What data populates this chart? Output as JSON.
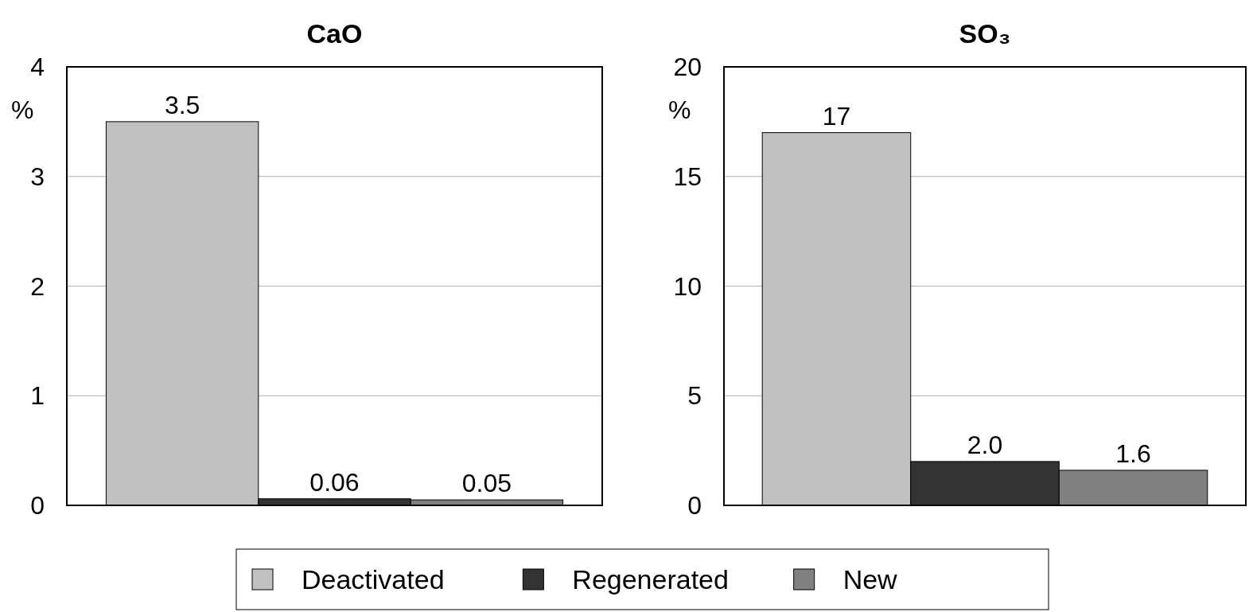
{
  "chart_data": [
    {
      "type": "bar",
      "title": "CaO",
      "ylabel": "%",
      "categories": [
        null
      ],
      "ylim": [
        0,
        4
      ],
      "yticks": [
        0,
        1,
        2,
        3,
        4
      ],
      "grid": "y",
      "legend": "bottom",
      "series": [
        {
          "name": "Deactivated",
          "color": "#c0c0c0",
          "values": [
            3.5
          ],
          "value_labels": [
            "3.5"
          ]
        },
        {
          "name": "Regenerated",
          "color": "#333333",
          "values": [
            0.06
          ],
          "value_labels": [
            "0.06"
          ]
        },
        {
          "name": "New",
          "color": "#808080",
          "values": [
            0.05
          ],
          "value_labels": [
            "0.05"
          ]
        }
      ]
    },
    {
      "type": "bar",
      "title": "SO₃",
      "ylabel": "%",
      "categories": [
        null
      ],
      "ylim": [
        0,
        20
      ],
      "yticks": [
        0,
        5,
        10,
        15,
        20
      ],
      "grid": "y",
      "series": [
        {
          "color": "#c0c0c0",
          "values": [
            17
          ],
          "value_labels": [
            "17"
          ]
        },
        {
          "color": "#333333",
          "values": [
            2.0
          ],
          "value_labels": [
            "2.0"
          ]
        },
        {
          "color": "#808080",
          "values": [
            1.6
          ],
          "value_labels": [
            "1.6"
          ]
        }
      ]
    }
  ]
}
